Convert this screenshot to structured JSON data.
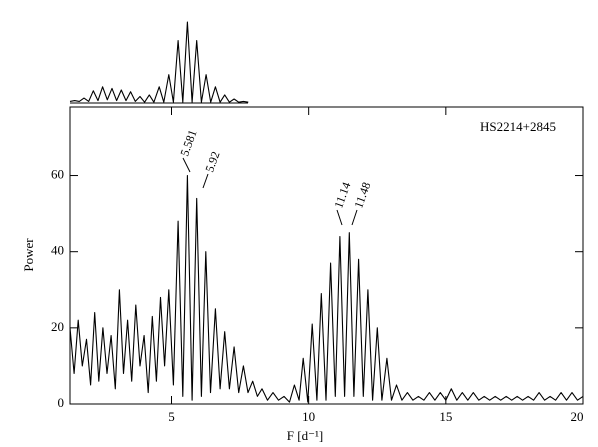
{
  "chart_data": [
    {
      "type": "line",
      "object_label": "HS2214+2845",
      "x_label": "F [d⁻¹]",
      "y_label": "Power",
      "xlim": [
        1.3,
        20
      ],
      "ylim": [
        0,
        78
      ],
      "xticks": [
        5,
        10,
        15,
        20
      ],
      "yticks": [
        0,
        20,
        40,
        60
      ],
      "color": "#000000",
      "annotations": [
        "5.581",
        "5.92",
        "11.14",
        "11.48"
      ],
      "x": [
        1.3,
        1.45,
        1.6,
        1.75,
        1.9,
        2.05,
        2.2,
        2.35,
        2.5,
        2.65,
        2.8,
        2.95,
        3.1,
        3.25,
        3.4,
        3.55,
        3.7,
        3.85,
        4.0,
        4.15,
        4.3,
        4.45,
        4.6,
        4.75,
        4.9,
        5.07,
        5.24,
        5.41,
        5.581,
        5.75,
        5.92,
        6.09,
        6.25,
        6.42,
        6.6,
        6.77,
        6.94,
        7.11,
        7.28,
        7.45,
        7.62,
        7.79,
        7.96,
        8.13,
        8.3,
        8.5,
        8.7,
        8.9,
        9.1,
        9.3,
        9.48,
        9.65,
        9.8,
        9.97,
        10.13,
        10.3,
        10.46,
        10.63,
        10.8,
        10.97,
        11.14,
        11.31,
        11.48,
        11.65,
        11.82,
        11.99,
        12.16,
        12.33,
        12.5,
        12.67,
        12.85,
        13.02,
        13.2,
        13.4,
        13.6,
        13.8,
        14.0,
        14.2,
        14.4,
        14.6,
        14.8,
        15.0,
        15.2,
        15.4,
        15.6,
        15.8,
        16.0,
        16.2,
        16.4,
        16.6,
        16.8,
        17.0,
        17.2,
        17.4,
        17.6,
        17.8,
        18.0,
        18.2,
        18.4,
        18.6,
        18.8,
        19.0,
        19.2,
        19.4,
        19.6,
        19.8,
        20
      ],
      "values": [
        20,
        8,
        22,
        10,
        17,
        5,
        24,
        6,
        20,
        8,
        18,
        4,
        30,
        8,
        22,
        6,
        26,
        10,
        18,
        3,
        23,
        6,
        28,
        10,
        30,
        5,
        48,
        2,
        60,
        1,
        54,
        2,
        40,
        3,
        25,
        4,
        19,
        4,
        15,
        3,
        10,
        3,
        6,
        2,
        4,
        1,
        3,
        1,
        2,
        0.5,
        5,
        1,
        12,
        0.5,
        21,
        1,
        29,
        1,
        37,
        2,
        44,
        2,
        45,
        2,
        38,
        2,
        30,
        1,
        20,
        1,
        12,
        1,
        5,
        1,
        3,
        1,
        2,
        1,
        3,
        1,
        3,
        1,
        4,
        1,
        3,
        1,
        3,
        1,
        2,
        1,
        2,
        1,
        2,
        1,
        2,
        1,
        2,
        1,
        3,
        1,
        2,
        1,
        3,
        1,
        3,
        1,
        2
      ]
    },
    {
      "type": "line",
      "xlim": [
        1.3,
        20
      ],
      "ylim": [
        0,
        1
      ],
      "color": "#000000",
      "x": [
        1.3,
        1.47,
        1.64,
        1.81,
        1.98,
        2.15,
        2.32,
        2.49,
        2.66,
        2.83,
        3.0,
        3.17,
        3.34,
        3.51,
        3.68,
        3.85,
        4.02,
        4.19,
        4.36,
        4.55,
        4.72,
        4.9,
        5.07,
        5.24,
        5.41,
        5.581,
        5.75,
        5.92,
        6.09,
        6.26,
        6.43,
        6.6,
        6.77,
        6.94,
        7.11,
        7.28,
        7.45,
        7.62,
        7.8
      ],
      "values": [
        0.02,
        0.03,
        0.02,
        0.06,
        0.02,
        0.15,
        0.03,
        0.2,
        0.04,
        0.18,
        0.03,
        0.16,
        0.03,
        0.14,
        0.02,
        0.08,
        0.01,
        0.1,
        0.01,
        0.2,
        0.01,
        0.35,
        0.01,
        0.77,
        0.01,
        1,
        0.01,
        0.77,
        0.01,
        0.35,
        0.01,
        0.2,
        0.01,
        0.1,
        0.01,
        0.05,
        0.01,
        0.02,
        0.01
      ]
    }
  ]
}
